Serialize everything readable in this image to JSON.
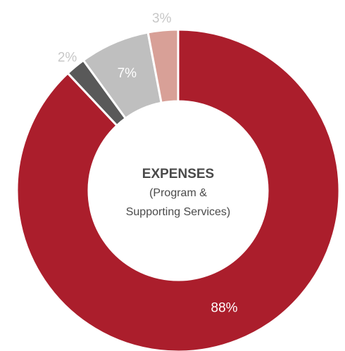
{
  "chart_data": {
    "type": "pie",
    "style": "donut",
    "center_title": "EXPENSES",
    "center_subtitle_lines": [
      "(Program &",
      "Supporting Services)"
    ],
    "slices": [
      {
        "label": "88%",
        "value": 88,
        "color": "#ab1e2c",
        "label_color": "#ffffff",
        "label_position": "inside"
      },
      {
        "label": "2%",
        "value": 2,
        "color": "#595959",
        "label_color": "#c7c7c7",
        "label_position": "outside"
      },
      {
        "label": "7%",
        "value": 7,
        "color": "#bfbfbf",
        "label_color": "#ffffff",
        "label_position": "inside"
      },
      {
        "label": "3%",
        "value": 3,
        "color": "#d8a097",
        "label_color": "#c7c7c7",
        "label_position": "outside"
      }
    ]
  }
}
